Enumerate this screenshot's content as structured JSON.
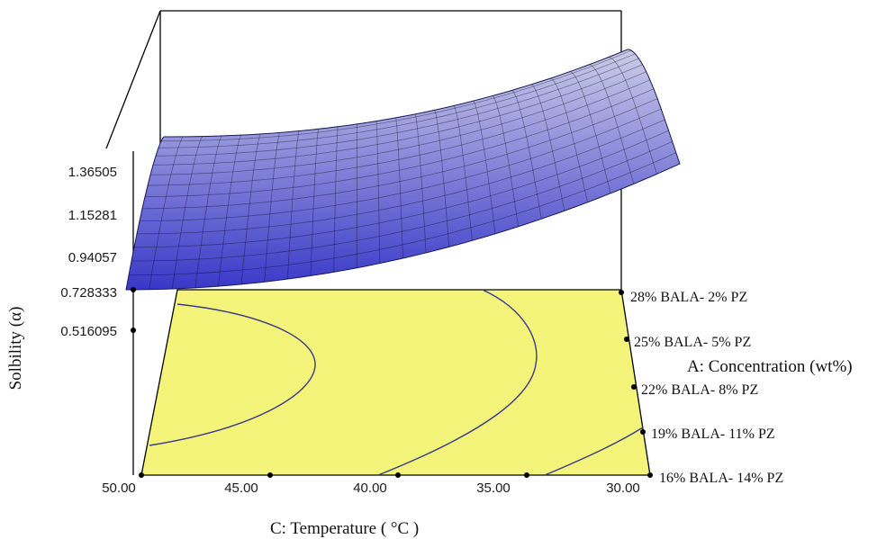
{
  "chart_data": {
    "type": "surface",
    "z_axis": {
      "label": "Solbility (α)",
      "ticks": [
        "0.516095",
        "0.728333",
        "0.94057",
        "1.15281",
        "1.36505"
      ]
    },
    "x_axis": {
      "label": "C: Temperature ( °C )",
      "ticks": [
        "50.00",
        "45.00",
        "40.00",
        "35.00",
        "30.00"
      ]
    },
    "y_axis": {
      "label": "A: Concentration (wt%)",
      "ticks": [
        "28% BALA- 2% PZ",
        "25% BALA- 5% PZ",
        "22% BALA- 8% PZ",
        "19% BALA- 11% PZ",
        "16% BALA- 14% PZ"
      ]
    },
    "colors": {
      "surface_high": "#ccccea",
      "surface_low": "#3838c8",
      "floor": "#f4f47a"
    }
  }
}
